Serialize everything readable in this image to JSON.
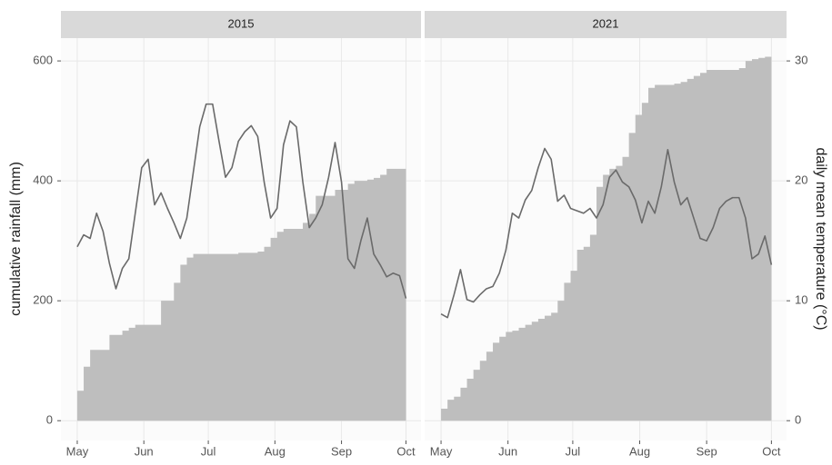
{
  "chart_data": [
    {
      "type": "combo",
      "title": "2015",
      "y_label": "cumulative rainfall (mm)",
      "x": [
        0,
        3,
        6,
        9,
        12,
        15,
        18,
        21,
        24,
        27,
        30,
        33,
        36,
        39,
        42,
        45,
        48,
        51,
        54,
        57,
        60,
        63,
        66,
        69,
        72,
        75,
        78,
        81,
        84,
        87,
        90,
        93,
        96,
        99,
        102,
        105,
        108,
        111,
        114,
        117,
        120,
        123,
        126,
        129,
        132,
        135,
        138,
        141,
        144,
        147,
        150,
        153
      ],
      "xlim": [
        -7.6,
        160
      ],
      "xticks": [
        {
          "value": 0,
          "label": "May"
        },
        {
          "value": 31,
          "label": "Jun"
        },
        {
          "value": 61,
          "label": "Jul"
        },
        {
          "value": 92,
          "label": "Aug"
        },
        {
          "value": 123,
          "label": "Sep"
        },
        {
          "value": 153,
          "label": "Oct"
        }
      ],
      "ylim": [
        -33,
        638
      ],
      "yticks": [
        0,
        200,
        400,
        600
      ],
      "y2lim": [
        -1.65,
        31.9
      ],
      "series": [
        {
          "type": "area",
          "color": "#bebebe",
          "values": [
            50,
            90,
            118,
            118,
            118,
            143,
            143,
            150,
            155,
            160,
            160,
            160,
            160,
            200,
            200,
            230,
            260,
            272,
            278,
            278,
            278,
            278,
            278,
            278,
            278,
            280,
            280,
            280,
            282,
            290,
            305,
            315,
            320,
            320,
            320,
            330,
            345,
            375,
            375,
            375,
            385,
            385,
            395,
            400,
            400,
            402,
            405,
            410,
            420,
            420,
            420,
            420
          ]
        },
        {
          "type": "line",
          "axis": "y2",
          "color": "#6a6a6a",
          "values": [
            14.5,
            15.5,
            15.2,
            17.3,
            15.8,
            13.1,
            11.0,
            12.7,
            13.5,
            17.3,
            21.1,
            21.8,
            18.0,
            19.0,
            17.7,
            16.5,
            15.2,
            16.9,
            20.7,
            24.5,
            26.4,
            26.4,
            23.3,
            20.3,
            21.1,
            23.3,
            24.1,
            24.6,
            23.7,
            19.9,
            16.9,
            17.7,
            23.0,
            25.0,
            24.5,
            19.9,
            16.1,
            16.9,
            18.0,
            20.3,
            23.2,
            19.9,
            13.5,
            12.7,
            15.0,
            16.9,
            13.9,
            13.0,
            12.0,
            12.3,
            12.1,
            10.2
          ]
        }
      ]
    },
    {
      "type": "combo",
      "title": "2021",
      "y2_label": "daily mean temperature  (°C)",
      "x": [
        0,
        3,
        6,
        9,
        12,
        15,
        18,
        21,
        24,
        27,
        30,
        33,
        36,
        39,
        42,
        45,
        48,
        51,
        54,
        57,
        60,
        63,
        66,
        69,
        72,
        75,
        78,
        81,
        84,
        87,
        90,
        93,
        96,
        99,
        102,
        105,
        108,
        111,
        114,
        117,
        120,
        123,
        126,
        129,
        132,
        135,
        138,
        141,
        144,
        147,
        150,
        153
      ],
      "xlim": [
        -7.6,
        160
      ],
      "xticks": [
        {
          "value": 0,
          "label": "May"
        },
        {
          "value": 31,
          "label": "Jun"
        },
        {
          "value": 61,
          "label": "Jul"
        },
        {
          "value": 92,
          "label": "Aug"
        },
        {
          "value": 123,
          "label": "Sep"
        },
        {
          "value": 153,
          "label": "Oct"
        }
      ],
      "ylim": [
        -33,
        638
      ],
      "yticks": [
        0,
        200,
        400,
        600
      ],
      "y2lim": [
        -1.65,
        31.9
      ],
      "y2ticks": [
        0,
        10,
        20,
        30
      ],
      "series": [
        {
          "type": "area",
          "color": "#bebebe",
          "values": [
            20,
            35,
            40,
            55,
            70,
            85,
            100,
            115,
            130,
            140,
            148,
            150,
            155,
            160,
            165,
            170,
            175,
            180,
            200,
            230,
            250,
            285,
            290,
            310,
            390,
            410,
            420,
            425,
            440,
            480,
            510,
            530,
            555,
            560,
            560,
            560,
            562,
            565,
            570,
            575,
            580,
            585,
            585,
            585,
            585,
            585,
            588,
            600,
            603,
            605,
            607,
            607
          ]
        },
        {
          "type": "line",
          "axis": "y2",
          "color": "#6a6a6a",
          "values": [
            8.9,
            8.6,
            10.5,
            12.6,
            10.1,
            9.9,
            10.5,
            11.0,
            11.2,
            12.3,
            14.2,
            17.3,
            16.9,
            18.4,
            19.2,
            21.1,
            22.7,
            21.8,
            18.3,
            18.8,
            17.7,
            17.5,
            17.3,
            17.7,
            16.9,
            18.0,
            20.3,
            20.9,
            19.9,
            19.5,
            18.4,
            16.5,
            18.3,
            17.3,
            19.5,
            22.6,
            19.9,
            18.0,
            18.6,
            16.9,
            15.2,
            15.0,
            16.1,
            17.7,
            18.3,
            18.6,
            18.6,
            16.9,
            13.5,
            13.9,
            15.4,
            13.0
          ]
        }
      ]
    }
  ]
}
